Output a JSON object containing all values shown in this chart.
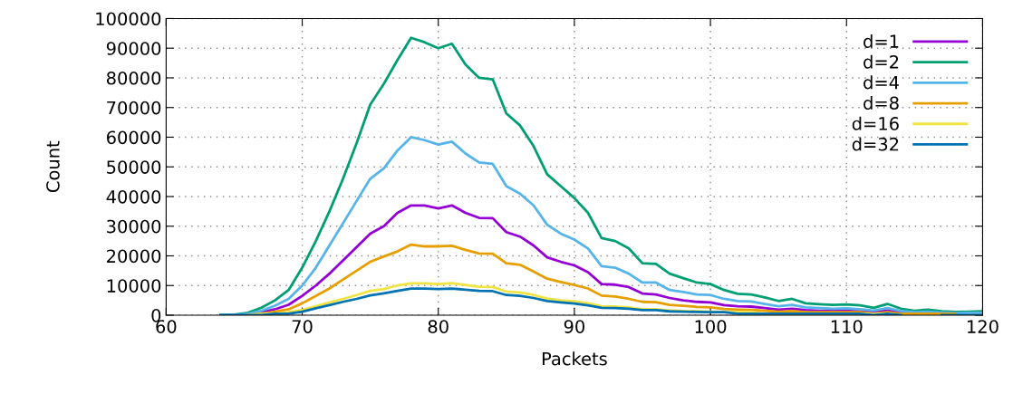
{
  "chart_data": {
    "type": "line",
    "xlabel": "Packets",
    "ylabel": "Count",
    "xlim": [
      60,
      120
    ],
    "ylim": [
      0,
      100000
    ],
    "xticks": [
      60,
      70,
      80,
      90,
      100,
      110,
      120
    ],
    "yticks": [
      0,
      10000,
      20000,
      30000,
      40000,
      50000,
      60000,
      70000,
      80000,
      90000,
      100000
    ],
    "grid": true,
    "legend": "top right",
    "marker": "none",
    "line_style": "solid",
    "x": [
      64,
      65,
      66,
      67,
      68,
      69,
      70,
      71,
      72,
      73,
      74,
      75,
      76,
      77,
      78,
      79,
      80,
      81,
      82,
      83,
      84,
      85,
      86,
      87,
      88,
      89,
      90,
      91,
      92,
      93,
      94,
      95,
      96,
      97,
      98,
      99,
      100,
      101,
      102,
      103,
      104,
      105,
      106,
      107,
      108,
      109,
      110,
      111,
      112,
      113,
      114,
      115,
      116,
      117,
      118,
      119,
      120
    ],
    "series": [
      {
        "name": "d=1",
        "color": "#9400d3",
        "values": [
          null,
          null,
          300,
          900,
          2000,
          3500,
          6500,
          10000,
          14000,
          18500,
          23000,
          27500,
          30000,
          34500,
          37000,
          37000,
          36000,
          37000,
          34500,
          32800,
          32700,
          28000,
          26500,
          23500,
          19500,
          18000,
          16800,
          14500,
          10500,
          10300,
          9500,
          7300,
          7000,
          5800,
          5000,
          4500,
          4300,
          3400,
          3000,
          2900,
          2400,
          1900,
          2200,
          1700,
          1500,
          1400,
          1400,
          1300,
          1000,
          1600,
          900,
          600,
          null,
          null,
          null,
          null,
          null
        ]
      },
      {
        "name": "d=2",
        "color": "#009e73",
        "values": [
          0,
          200,
          800,
          2500,
          5000,
          8500,
          16000,
          25000,
          35000,
          46000,
          58000,
          71000,
          78000,
          86000,
          93500,
          92000,
          90000,
          91500,
          84500,
          80000,
          79500,
          68000,
          64000,
          57000,
          47500,
          43500,
          39500,
          34500,
          26000,
          25000,
          22500,
          17500,
          17300,
          14000,
          12500,
          11000,
          10500,
          8500,
          7200,
          7000,
          6000,
          4800,
          5500,
          4000,
          3700,
          3500,
          3600,
          3300,
          2500,
          3800,
          2200,
          1500,
          1900,
          1300,
          1100,
          1200,
          1300
        ]
      },
      {
        "name": "d=4",
        "color": "#56b4e9",
        "values": [
          0,
          0,
          500,
          1500,
          3200,
          5500,
          10000,
          16000,
          23500,
          31000,
          38500,
          46000,
          49500,
          55500,
          60000,
          59000,
          57500,
          58500,
          54500,
          51500,
          51000,
          43500,
          41000,
          37000,
          30500,
          27500,
          25500,
          22500,
          16500,
          16000,
          14000,
          11000,
          11000,
          8500,
          7800,
          7000,
          6800,
          5500,
          4800,
          4600,
          3800,
          3000,
          3500,
          2600,
          2400,
          2200,
          2300,
          2000,
          1600,
          2400,
          1400,
          1000,
          1200,
          900,
          700,
          800,
          800
        ]
      },
      {
        "name": "d=8",
        "color": "#e69f00",
        "values": [
          null,
          null,
          0,
          500,
          1200,
          2000,
          4000,
          6500,
          9000,
          12000,
          15000,
          18000,
          19800,
          21500,
          23800,
          23200,
          23200,
          23400,
          22000,
          20800,
          20700,
          17500,
          17000,
          14700,
          12300,
          11200,
          10200,
          9000,
          6600,
          6300,
          5500,
          4500,
          4400,
          3500,
          3200,
          2800,
          2600,
          2100,
          1900,
          1800,
          1500,
          1200,
          1400,
          1000,
          1000,
          1000,
          1000,
          1000,
          500,
          1000,
          500,
          500,
          500,
          500,
          500,
          null,
          null
        ]
      },
      {
        "name": "d=16",
        "color": "#f0e442",
        "values": [
          null,
          null,
          0,
          500,
          500,
          1000,
          1800,
          3000,
          4300,
          5500,
          6800,
          8200,
          8800,
          10000,
          10700,
          10700,
          10500,
          10800,
          10200,
          9600,
          9500,
          8000,
          7700,
          6800,
          5600,
          5000,
          4700,
          4000,
          3000,
          2900,
          2600,
          2000,
          2000,
          1600,
          1400,
          1300,
          1200,
          1000,
          1000,
          1000,
          500,
          500,
          500,
          500,
          500,
          500,
          500,
          500,
          500,
          500,
          0,
          null,
          null,
          null,
          null,
          null,
          null
        ]
      },
      {
        "name": "d=32",
        "color": "#0072b2",
        "values": [
          0,
          0,
          0,
          0,
          500,
          500,
          1200,
          2300,
          3400,
          4500,
          5500,
          6700,
          7400,
          8200,
          9000,
          9000,
          8800,
          9000,
          8600,
          8200,
          8100,
          6800,
          6500,
          5800,
          4800,
          4300,
          3900,
          3300,
          2500,
          2400,
          2200,
          1700,
          1700,
          1300,
          1200,
          1100,
          1000,
          1000,
          500,
          500,
          500,
          500,
          500,
          500,
          500,
          500,
          500,
          500,
          0,
          500,
          0,
          null,
          null,
          0,
          0,
          0,
          0
        ]
      }
    ]
  }
}
